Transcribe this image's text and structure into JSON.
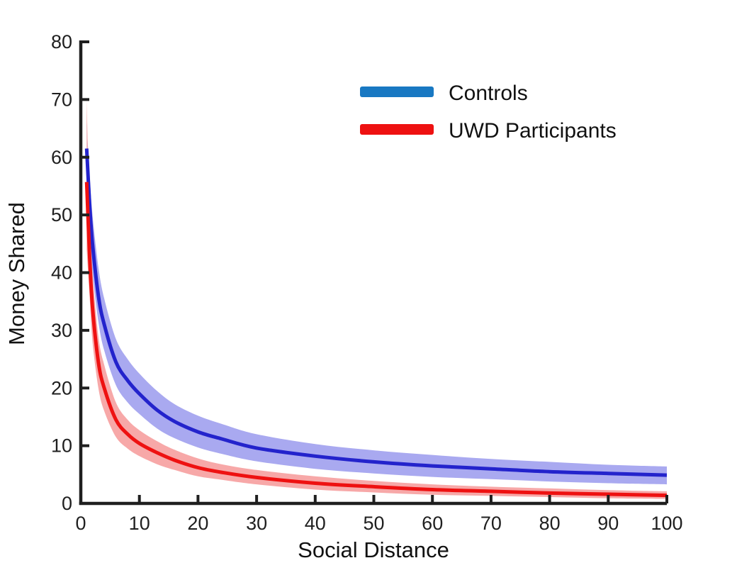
{
  "figure": {
    "background": "#ffffff",
    "axis_color": "#1f1f1f"
  },
  "axes": {
    "xlabel": "Social Distance",
    "ylabel": "Money Shared"
  },
  "legend": {
    "items": [
      {
        "label": "Controls",
        "swatch_color": "#1878C2"
      },
      {
        "label": "UWD Participants",
        "swatch_color": "#EE1111"
      }
    ]
  },
  "chart_data": {
    "type": "line",
    "title": "",
    "xlabel": "Social Distance",
    "ylabel": "Money Shared",
    "xlim": [
      0,
      100
    ],
    "ylim": [
      0,
      80
    ],
    "xticks": [
      0,
      10,
      20,
      30,
      40,
      50,
      60,
      70,
      80,
      90,
      100
    ],
    "yticks": [
      0,
      10,
      20,
      30,
      40,
      50,
      60,
      70,
      80
    ],
    "grid": false,
    "legend_position": "upper-right-inside",
    "x": [
      1,
      1.5,
      2,
      3,
      4,
      6,
      8,
      10,
      13,
      16,
      20,
      24,
      30,
      40,
      50,
      60,
      70,
      80,
      90,
      100
    ],
    "series": [
      {
        "name": "Controls",
        "line_color": "#2323CC",
        "band_color": "#A9A9F0",
        "values": [
          61.5,
          52,
          45,
          36,
          31,
          24.5,
          21.3,
          19,
          16.2,
          14.2,
          12.4,
          11.2,
          9.6,
          8.2,
          7.2,
          6.5,
          6.0,
          5.5,
          5.2,
          4.9
        ],
        "upper": [
          66,
          57,
          50,
          41,
          35.5,
          28.5,
          25,
          22.5,
          19.5,
          17.2,
          15.2,
          13.8,
          12.0,
          10.3,
          9.2,
          8.4,
          7.7,
          7.2,
          6.7,
          6.4
        ],
        "lower": [
          56,
          47,
          40,
          31.5,
          26.5,
          20.5,
          17.5,
          15.5,
          13.0,
          11.3,
          9.7,
          8.6,
          7.3,
          6.0,
          5.2,
          4.6,
          4.2,
          3.8,
          3.5,
          3.3
        ]
      },
      {
        "name": "UWD Participants",
        "line_color": "#EE1111",
        "band_color": "#F7A8A8",
        "values": [
          55.7,
          43,
          34,
          24.5,
          20,
          14.5,
          12,
          10.4,
          8.8,
          7.5,
          6.2,
          5.4,
          4.5,
          3.5,
          2.9,
          2.4,
          2.1,
          1.8,
          1.6,
          1.4
        ],
        "upper": [
          70,
          50,
          40,
          29,
          24,
          17.5,
          14.5,
          12.7,
          10.8,
          9.3,
          7.8,
          6.8,
          5.8,
          4.7,
          3.9,
          3.3,
          2.9,
          2.6,
          2.3,
          2.1
        ],
        "lower": [
          44,
          36,
          28,
          20,
          16,
          11.5,
          9.5,
          8.2,
          6.8,
          5.8,
          4.7,
          4.1,
          3.3,
          2.4,
          1.9,
          1.5,
          1.3,
          1.1,
          0.9,
          0.8
        ]
      }
    ]
  }
}
